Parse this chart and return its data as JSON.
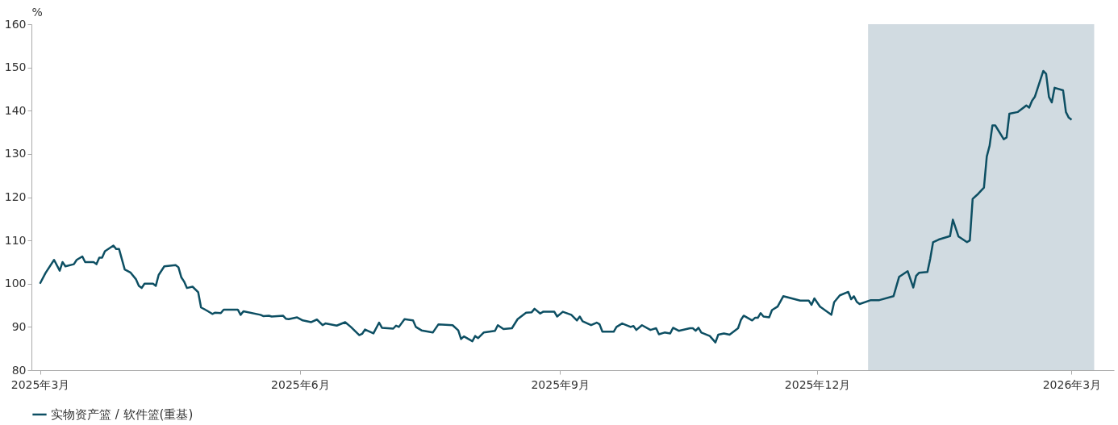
{
  "chart_data": {
    "type": "line",
    "ylabel": "%",
    "legend": "bottom left",
    "grid": false,
    "line_style": "solid",
    "marker": "none",
    "xlim": [
      "2025-02-26",
      "2026-03-16"
    ],
    "xticks": [
      {
        "value": "2025-03-01",
        "label": "2025年3月"
      },
      {
        "value": "2025-06-01",
        "label": "2025年6月"
      },
      {
        "value": "2025-09-01",
        "label": "2025年9月"
      },
      {
        "value": "2025-12-01",
        "label": "2025年12月"
      },
      {
        "value": "2026-03-01",
        "label": "2026年3月"
      }
    ],
    "ylim": [
      80,
      160
    ],
    "yticks": [
      80,
      90,
      100,
      110,
      120,
      130,
      140,
      150,
      160
    ],
    "bands": [
      {
        "axis": "x",
        "from": "2025-12-19",
        "to": "2026-03-09",
        "color": "#d1dbe1"
      }
    ],
    "x": [
      "2025-03-01",
      "2025-03-03",
      "2025-03-06",
      "2025-03-08",
      "2025-03-09",
      "2025-03-10",
      "2025-03-13",
      "2025-03-14",
      "2025-03-16",
      "2025-03-17",
      "2025-03-20",
      "2025-03-21",
      "2025-03-22",
      "2025-03-23",
      "2025-03-24",
      "2025-03-27",
      "2025-03-28",
      "2025-03-29",
      "2025-03-31",
      "2025-04-02",
      "2025-04-04",
      "2025-04-05",
      "2025-04-06",
      "2025-04-07",
      "2025-04-10",
      "2025-04-11",
      "2025-04-12",
      "2025-04-14",
      "2025-04-18",
      "2025-04-19",
      "2025-04-20",
      "2025-04-21",
      "2025-04-22",
      "2025-04-24",
      "2025-04-26",
      "2025-04-27",
      "2025-04-29",
      "2025-05-01",
      "2025-05-02",
      "2025-05-04",
      "2025-05-05",
      "2025-05-10",
      "2025-05-11",
      "2025-05-12",
      "2025-05-18",
      "2025-05-19",
      "2025-05-21",
      "2025-05-22",
      "2025-05-26",
      "2025-05-27",
      "2025-05-28",
      "2025-05-31",
      "2025-06-02",
      "2025-06-05",
      "2025-06-07",
      "2025-06-09",
      "2025-06-10",
      "2025-06-14",
      "2025-06-17",
      "2025-06-19",
      "2025-06-22",
      "2025-06-23",
      "2025-06-24",
      "2025-06-27",
      "2025-06-29",
      "2025-06-30",
      "2025-07-04",
      "2025-07-05",
      "2025-07-06",
      "2025-07-08",
      "2025-07-11",
      "2025-07-12",
      "2025-07-14",
      "2025-07-18",
      "2025-07-20",
      "2025-07-25",
      "2025-07-27",
      "2025-07-28",
      "2025-07-29",
      "2025-08-01",
      "2025-08-02",
      "2025-08-03",
      "2025-08-05",
      "2025-08-09",
      "2025-08-10",
      "2025-08-12",
      "2025-08-15",
      "2025-08-17",
      "2025-08-20",
      "2025-08-22",
      "2025-08-23",
      "2025-08-25",
      "2025-08-26",
      "2025-08-30",
      "2025-08-31",
      "2025-09-02",
      "2025-09-05",
      "2025-09-07",
      "2025-09-08",
      "2025-09-09",
      "2025-09-12",
      "2025-09-14",
      "2025-09-15",
      "2025-09-16",
      "2025-09-20",
      "2025-09-21",
      "2025-09-23",
      "2025-09-26",
      "2025-09-27",
      "2025-09-28",
      "2025-09-30",
      "2025-10-03",
      "2025-10-05",
      "2025-10-06",
      "2025-10-08",
      "2025-10-10",
      "2025-10-11",
      "2025-10-13",
      "2025-10-17",
      "2025-10-18",
      "2025-10-19",
      "2025-10-20",
      "2025-10-21",
      "2025-10-24",
      "2025-10-26",
      "2025-10-27",
      "2025-10-29",
      "2025-10-31",
      "2025-11-03",
      "2025-11-04",
      "2025-11-05",
      "2025-11-08",
      "2025-11-09",
      "2025-11-10",
      "2025-11-11",
      "2025-11-12",
      "2025-11-14",
      "2025-11-15",
      "2025-11-17",
      "2025-11-19",
      "2025-11-22",
      "2025-11-25",
      "2025-11-28",
      "2025-11-29",
      "2025-11-30",
      "2025-12-02",
      "2025-12-06",
      "2025-12-07",
      "2025-12-09",
      "2025-12-12",
      "2025-12-13",
      "2025-12-14",
      "2025-12-15",
      "2025-12-16",
      "2025-12-20",
      "2025-12-23",
      "2025-12-28",
      "2025-12-30",
      "2026-01-02",
      "2026-01-04",
      "2026-01-05",
      "2026-01-06",
      "2026-01-09",
      "2026-01-10",
      "2026-01-11",
      "2026-01-13",
      "2026-01-17",
      "2026-01-18",
      "2026-01-20",
      "2026-01-23",
      "2026-01-24",
      "2026-01-25",
      "2026-01-27",
      "2026-01-29",
      "2026-01-30",
      "2026-01-31",
      "2026-02-01",
      "2026-02-02",
      "2026-02-05",
      "2026-02-06",
      "2026-02-07",
      "2026-02-10",
      "2026-02-13",
      "2026-02-14",
      "2026-02-15",
      "2026-02-16",
      "2026-02-19",
      "2026-02-20",
      "2026-02-21",
      "2026-02-22",
      "2026-02-23",
      "2026-02-26",
      "2026-02-27",
      "2026-02-28",
      "2026-03-01"
    ],
    "series": [
      {
        "name": "实物资产篮 / 软件篮(重基)",
        "color": "#0d4f63",
        "values": [
          100,
          102.5,
          105.5,
          103,
          105,
          104,
          104.5,
          105.5,
          106.3,
          105,
          105,
          104.5,
          106,
          106,
          107.5,
          108.8,
          108,
          108,
          103.3,
          102.6,
          101,
          99.5,
          99,
          100,
          100,
          99.5,
          102,
          104,
          104.3,
          103.8,
          101.5,
          100.5,
          99,
          99.3,
          98,
          94.5,
          93.8,
          93,
          93.3,
          93.2,
          94,
          94,
          92.8,
          93.6,
          92.8,
          92.5,
          92.6,
          92.4,
          92.6,
          91.9,
          91.8,
          92.2,
          91.5,
          91.1,
          91.7,
          90.4,
          90.8,
          90.3,
          91.1,
          90,
          88.1,
          88.4,
          89.4,
          88.5,
          91,
          89.8,
          89.6,
          90.3,
          90,
          91.8,
          91.5,
          90,
          89.2,
          88.7,
          90.6,
          90.4,
          89.2,
          87.2,
          87.8,
          86.7,
          87.9,
          87.4,
          88.7,
          89.1,
          90.4,
          89.5,
          89.7,
          91.8,
          93.3,
          93.4,
          94.2,
          93.1,
          93.5,
          93.5,
          92.4,
          93.5,
          92.8,
          91.5,
          92.4,
          91.3,
          90.4,
          91,
          90.6,
          88.9,
          88.9,
          90,
          90.8,
          90,
          90.2,
          89.3,
          90.4,
          89.3,
          89.7,
          88.3,
          88.7,
          88.5,
          89.8,
          89.1,
          89.7,
          89.7,
          89.1,
          89.8,
          88.7,
          87.9,
          86.4,
          88.2,
          88.5,
          88.2,
          89.7,
          91.6,
          92.6,
          91.5,
          92.1,
          92.1,
          93.2,
          92.4,
          92.2,
          93.9,
          94.7,
          97.1,
          96.6,
          96.1,
          96.1,
          95.1,
          96.6,
          94.7,
          92.8,
          95.7,
          97.3,
          98.1,
          96.4,
          97.1,
          95.8,
          95.3,
          96.2,
          96.2,
          97.1,
          101.6,
          102.9,
          99.1,
          101.8,
          102.5,
          102.7,
          105.8,
          109.6,
          110.2,
          111,
          114.8,
          110.9,
          109.6,
          110,
          119.6,
          120.8,
          122.2,
          129.4,
          131.9,
          136.6,
          136.6,
          133.4,
          133.8,
          139.3,
          139.7,
          141.2,
          140.7,
          142.3,
          143.2,
          149.2,
          148.5,
          143.2,
          141.9,
          145.3,
          144.7,
          139.7,
          138.4,
          137.9
        ]
      }
    ]
  }
}
